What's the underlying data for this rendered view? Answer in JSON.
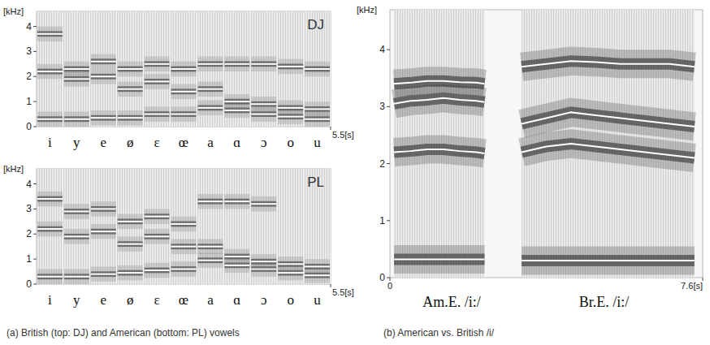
{
  "captions": [
    "(a) British (top: DJ) and American (bottom: PL) vowels",
    "(b) American vs. British /i/"
  ],
  "chart_data": [
    {
      "type": "line",
      "title": "DJ",
      "y_label": "[kHz]",
      "categories": [
        "i",
        "y",
        "e",
        "ø",
        "ɛ",
        "œ",
        "a",
        "ɑ",
        "ɔ",
        "o",
        "u"
      ],
      "xlim": [
        0,
        5.5
      ],
      "xticks": [
        {
          "value": 5.5,
          "label": "5.5[s]"
        }
      ],
      "ylim": [
        0,
        4.6
      ],
      "yticks": [
        0,
        1,
        2,
        3,
        4
      ],
      "series": [
        {
          "color": "#ffffff",
          "values": [
            0.3,
            0.3,
            0.35,
            0.35,
            0.5,
            0.5,
            0.75,
            0.65,
            0.5,
            0.4,
            0.3
          ]
        },
        {
          "color": "#ffffff",
          "values": [
            2.2,
            1.9,
            2.0,
            1.5,
            1.8,
            1.4,
            1.5,
            1.0,
            0.9,
            0.75,
            0.7
          ]
        },
        {
          "color": "#ffffff",
          "values": [
            3.7,
            2.3,
            2.6,
            2.3,
            2.5,
            2.3,
            2.5,
            2.5,
            2.5,
            2.4,
            2.3
          ]
        }
      ]
    },
    {
      "type": "line",
      "title": "PL",
      "y_label": "[kHz]",
      "categories": [
        "i",
        "y",
        "e",
        "ø",
        "ɛ",
        "œ",
        "a",
        "ɑ",
        "ɔ",
        "o",
        "u"
      ],
      "xlim": [
        0,
        5.5
      ],
      "xticks": [
        {
          "value": 5.5,
          "label": "5.5[s]"
        }
      ],
      "ylim": [
        0,
        4.6
      ],
      "yticks": [
        0,
        1,
        2,
        3,
        4
      ],
      "series": [
        {
          "color": "#ffffff",
          "values": [
            0.3,
            0.3,
            0.4,
            0.45,
            0.55,
            0.6,
            0.95,
            0.75,
            0.6,
            0.45,
            0.35
          ]
        },
        {
          "color": "#ffffff",
          "values": [
            2.2,
            1.9,
            2.1,
            1.6,
            1.9,
            1.5,
            1.5,
            1.1,
            0.9,
            0.8,
            0.7
          ]
        },
        {
          "color": "#ffffff",
          "values": [
            3.4,
            2.9,
            3.0,
            2.5,
            2.7,
            2.4,
            3.3,
            3.3,
            3.2,
            null,
            null
          ]
        }
      ]
    },
    {
      "type": "line",
      "y_label": "[kHz]",
      "x": [
        0.1,
        0.5,
        0.9,
        1.3,
        1.7,
        2.1,
        2.3,
        2.8,
        3.2,
        3.8,
        4.4,
        5.0,
        5.6,
        6.2,
        6.8,
        7.4
      ],
      "xlim": [
        0,
        7.6
      ],
      "xticks": [
        0,
        {
          "value": 7.6,
          "label": "7.6[s]"
        }
      ],
      "ylim": [
        0,
        4.7
      ],
      "yticks": [
        0,
        1,
        2,
        3,
        4
      ],
      "annotations": [
        {
          "text": "Am.E. /i:/",
          "x": 1.5
        },
        {
          "text": "Br.E. /i:/",
          "x": 5.2
        }
      ],
      "series": [
        {
          "color": "#ffffff",
          "values": [
            0.32,
            0.32,
            0.32,
            0.32,
            0.32,
            0.32,
            0.32,
            null,
            0.3,
            0.3,
            0.3,
            0.3,
            0.3,
            0.3,
            0.3,
            0.3
          ]
        },
        {
          "color": "#ffffff",
          "values": [
            2.2,
            2.22,
            2.25,
            2.25,
            2.22,
            2.2,
            2.18,
            null,
            2.2,
            2.3,
            2.35,
            2.3,
            2.25,
            2.2,
            2.15,
            2.1
          ]
        },
        {
          "color": "#ffffff",
          "values": [
            3.05,
            3.1,
            3.12,
            3.15,
            3.12,
            3.1,
            3.08,
            null,
            2.7,
            2.8,
            2.9,
            2.85,
            2.8,
            2.75,
            2.7,
            2.65
          ]
        },
        {
          "color": "#ffffff",
          "values": [
            3.4,
            3.42,
            3.45,
            3.45,
            3.43,
            3.42,
            3.4,
            null,
            3.7,
            3.75,
            3.8,
            3.78,
            3.75,
            3.75,
            3.75,
            3.7
          ]
        }
      ]
    }
  ]
}
